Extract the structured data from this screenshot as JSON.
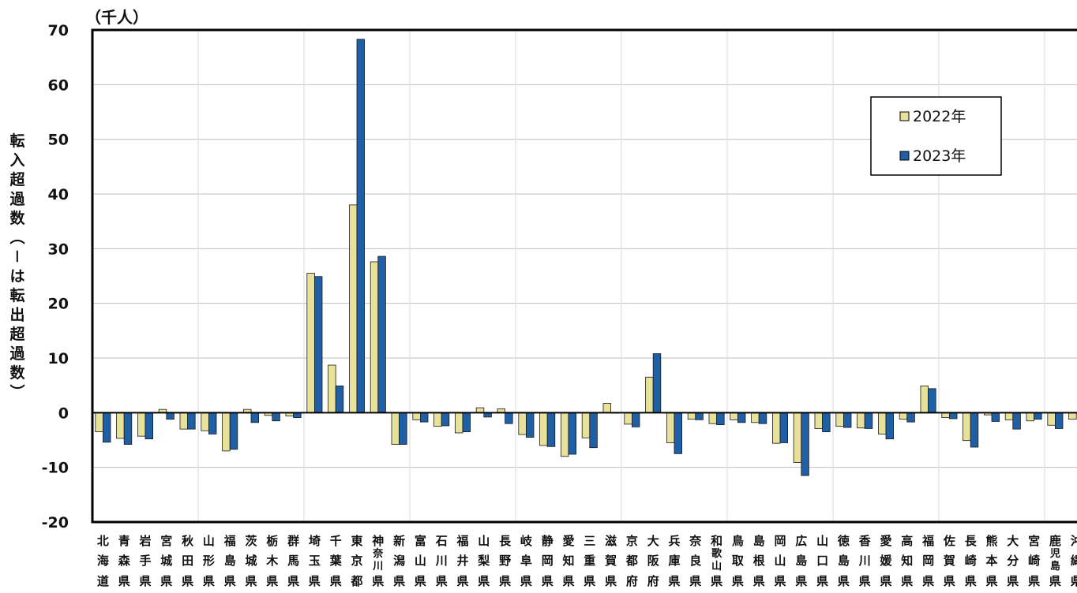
{
  "chart_data": {
    "type": "bar",
    "unit_label": "（千人）",
    "ylabel": "転入超過数（－は転出超過数）",
    "ylim": [
      -20,
      70
    ],
    "yticks": [
      -20,
      -10,
      0,
      10,
      20,
      30,
      40,
      50,
      60,
      70
    ],
    "grid": true,
    "legend_position": "top-right",
    "categories": [
      "北海道",
      "青森県",
      "岩手県",
      "宮城県",
      "秋田県",
      "山形県",
      "福島県",
      "茨城県",
      "栃木県",
      "群馬県",
      "埼玉県",
      "千葉県",
      "東京都",
      "神奈川県",
      "新潟県",
      "富山県",
      "石川県",
      "福井県",
      "山梨県",
      "長野県",
      "岐阜県",
      "静岡県",
      "愛知県",
      "三重県",
      "滋賀県",
      "京都府",
      "大阪府",
      "兵庫県",
      "奈良県",
      "和歌山県",
      "鳥取県",
      "島根県",
      "岡山県",
      "広島県",
      "山口県",
      "徳島県",
      "香川県",
      "愛媛県",
      "高知県",
      "福岡県",
      "佐賀県",
      "長崎県",
      "熊本県",
      "大分県",
      "宮崎県",
      "鹿児島県",
      "沖縄県"
    ],
    "series": [
      {
        "name": "2022年",
        "color": "#E8E19A",
        "values": [
          -3.5,
          -4.7,
          -4.3,
          0.6,
          -3.0,
          -3.3,
          -7.0,
          0.6,
          -0.5,
          -0.6,
          25.5,
          8.7,
          38.0,
          27.6,
          -5.8,
          -1.3,
          -2.5,
          -3.7,
          0.9,
          0.7,
          -4.0,
          -6.0,
          -8.0,
          -4.6,
          1.7,
          -2.1,
          6.5,
          -5.5,
          -1.2,
          -2.0,
          -1.3,
          -1.8,
          -5.6,
          -9.1,
          -2.9,
          -2.5,
          -2.8,
          -3.9,
          -1.2,
          4.9,
          -0.9,
          -5.1,
          -0.4,
          -1.3,
          -1.5,
          -2.3,
          -1.2
        ]
      },
      {
        "name": "2023年",
        "color": "#1F5FA6",
        "values": [
          -5.4,
          -5.8,
          -4.8,
          -1.2,
          -3.0,
          -3.9,
          -6.7,
          -1.8,
          -1.5,
          -0.9,
          24.9,
          4.9,
          68.3,
          28.6,
          -5.8,
          -1.7,
          -2.4,
          -3.5,
          -0.8,
          -2.0,
          -4.5,
          -6.2,
          -7.6,
          -6.4,
          0.0,
          -2.6,
          10.8,
          -7.5,
          -1.3,
          -2.2,
          -1.8,
          -2.0,
          -5.5,
          -11.5,
          -3.5,
          -2.7,
          -2.9,
          -4.8,
          -1.7,
          4.4,
          -1.1,
          -6.3,
          -1.6,
          -3.0,
          -1.2,
          -2.9,
          0.0
        ]
      }
    ]
  }
}
